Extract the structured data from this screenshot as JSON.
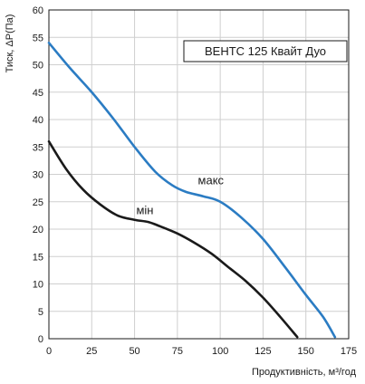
{
  "chart_data": {
    "type": "line",
    "title": "ВЕНТС 125 Квайт Дуо",
    "xlabel": "Продуктивність, м³/год",
    "ylabel": "Тиск, ΔP(Па)",
    "xlim": [
      0,
      175
    ],
    "ylim": [
      0,
      60
    ],
    "xticks": [
      0,
      25,
      50,
      75,
      100,
      125,
      150,
      175
    ],
    "yticks": [
      0,
      5,
      10,
      15,
      20,
      25,
      30,
      35,
      40,
      45,
      50,
      55,
      60
    ],
    "grid": true,
    "legend_position": "top-right",
    "series": [
      {
        "name": "макс",
        "color": "#2b7cc3",
        "x": [
          0,
          12,
          25,
          38,
          50,
          62,
          72,
          80,
          90,
          100,
          112,
          125,
          138,
          150,
          160,
          167
        ],
        "y": [
          54,
          49.5,
          45,
          40,
          35,
          30.5,
          28,
          26.8,
          26,
          25,
          22.2,
          18.2,
          13,
          8,
          4,
          0.3
        ]
      },
      {
        "name": "мін",
        "color": "#1a1a1a",
        "x": [
          0,
          10,
          20,
          30,
          40,
          50,
          58,
          65,
          75,
          85,
          95,
          105,
          115,
          125,
          135,
          145
        ],
        "y": [
          36,
          31,
          27.2,
          24.5,
          22.5,
          21.7,
          21.3,
          20.5,
          19.2,
          17.5,
          15.5,
          13,
          10.5,
          7.5,
          4,
          0.3
        ]
      }
    ]
  }
}
